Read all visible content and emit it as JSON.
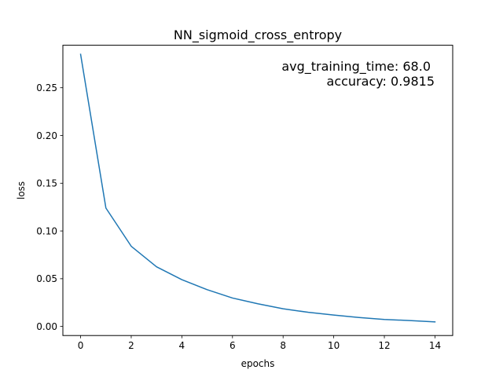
{
  "chart_data": {
    "type": "line",
    "title": "NN_sigmoid_cross_entropy",
    "xlabel": "epochs",
    "ylabel": "loss",
    "xlim": [
      -0.7,
      14.7
    ],
    "ylim": [
      -0.0095,
      0.2945
    ],
    "x_ticks": [
      0,
      2,
      4,
      6,
      8,
      10,
      12,
      14
    ],
    "x_tick_labels": [
      "0",
      "2",
      "4",
      "6",
      "8",
      "10",
      "12",
      "14"
    ],
    "y_ticks": [
      0.0,
      0.05,
      0.1,
      0.15,
      0.2,
      0.25
    ],
    "y_tick_labels": [
      "0.00",
      "0.05",
      "0.10",
      "0.15",
      "0.20",
      "0.25"
    ],
    "grid": false,
    "series": [
      {
        "color": "#1f77b4",
        "x": [
          0,
          1,
          2,
          3,
          4,
          5,
          6,
          7,
          8,
          9,
          10,
          11,
          12,
          13,
          14
        ],
        "y": [
          0.285,
          0.124,
          0.084,
          0.0625,
          0.049,
          0.0385,
          0.0298,
          0.0238,
          0.0185,
          0.0148,
          0.0119,
          0.0094,
          0.0073,
          0.0062,
          0.0048
        ]
      }
    ],
    "annotations": [
      "avg_training_time: 68.0",
      "accuracy: 0.9815"
    ],
    "annotation_placement": "top-right"
  }
}
